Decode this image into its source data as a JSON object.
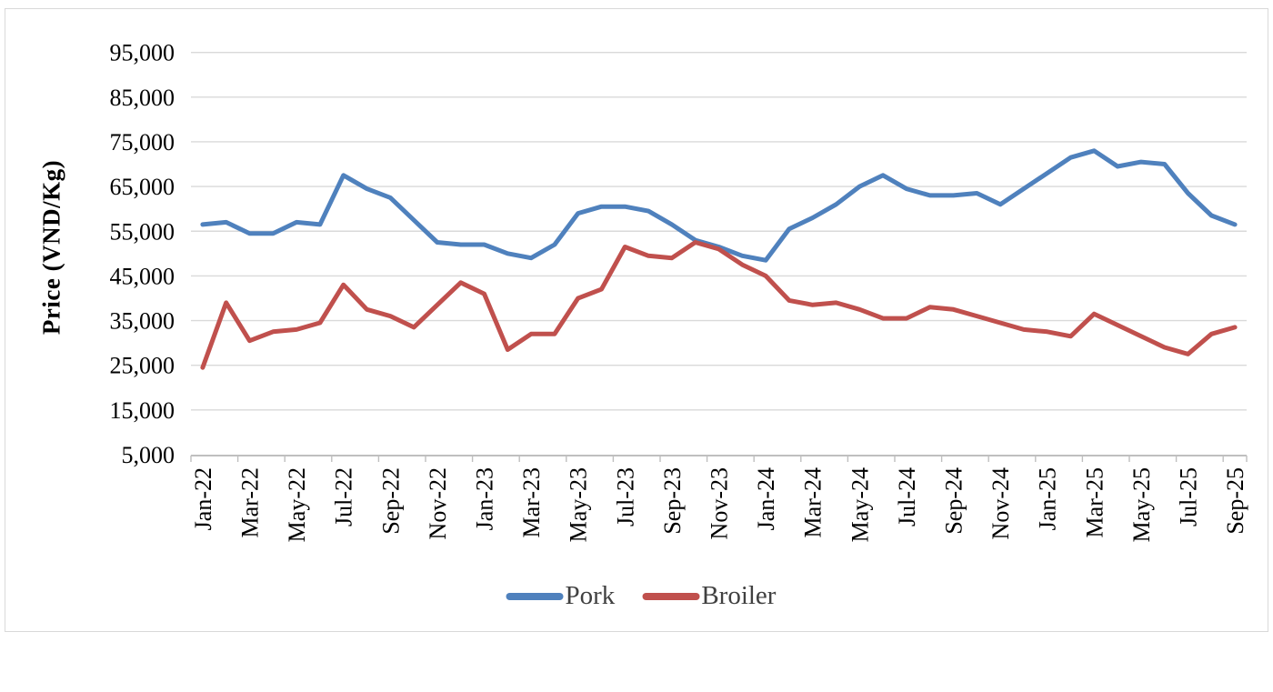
{
  "chart_data": {
    "type": "line",
    "title": "",
    "xlabel": "",
    "ylabel": "Price (VND/Kg)",
    "ylim": [
      5000,
      95000
    ],
    "ytick_step": 10000,
    "ytick_labels_top_to_bottom": [
      "95,000",
      "85,000",
      "75,000",
      "65,000",
      "55,000",
      "45,000",
      "35,000",
      "25,000",
      "15,000",
      "5,000"
    ],
    "grid": "horizontal",
    "legend_position": "bottom",
    "x_label_interval": 2,
    "visible_x_labels": [
      "Jan-22",
      "Mar-22",
      "May-22",
      "Jul-22",
      "Sep-22",
      "Nov-22",
      "Jan-23",
      "Mar-23",
      "May-23",
      "Jul-23",
      "Sep-23",
      "Nov-23",
      "Jan-24",
      "Mar-24",
      "May-24",
      "Jul-24",
      "Sep-24",
      "Nov-24",
      "Jan-25",
      "Mar-25",
      "May-25",
      "Jul-25",
      "Sep-25"
    ],
    "months": [
      "Jan-22",
      "Feb-22",
      "Mar-22",
      "Apr-22",
      "May-22",
      "Jun-22",
      "Jul-22",
      "Aug-22",
      "Sep-22",
      "Oct-22",
      "Nov-22",
      "Dec-22",
      "Jan-23",
      "Feb-23",
      "Mar-23",
      "Apr-23",
      "May-23",
      "Jun-23",
      "Jul-23",
      "Aug-23",
      "Sep-23",
      "Oct-23",
      "Nov-23",
      "Dec-23",
      "Jan-24",
      "Feb-24",
      "Mar-24",
      "Apr-24",
      "May-24",
      "Jun-24",
      "Jul-24",
      "Aug-24",
      "Sep-24",
      "Oct-24",
      "Nov-24",
      "Dec-24",
      "Jan-25",
      "Feb-25",
      "Mar-25",
      "Apr-25",
      "May-25",
      "Jun-25",
      "Jul-25",
      "Aug-25",
      "Sep-25"
    ],
    "series": [
      {
        "name": "Pork",
        "color": "#4F81BD",
        "values": [
          56500,
          57000,
          54500,
          54500,
          57000,
          56500,
          67500,
          64500,
          62500,
          57500,
          52500,
          52000,
          52000,
          50000,
          49000,
          52000,
          59000,
          60500,
          60500,
          59500,
          56500,
          53000,
          51500,
          49500,
          48500,
          55500,
          58000,
          61000,
          65000,
          67500,
          64500,
          63000,
          63000,
          63500,
          61000,
          64500,
          68000,
          71500,
          73000,
          69500,
          70500,
          70000,
          63500,
          58500,
          56500
        ]
      },
      {
        "name": "Broiler",
        "color": "#C0504D",
        "values": [
          24500,
          39000,
          30500,
          32500,
          33000,
          34500,
          43000,
          37500,
          36000,
          33500,
          38500,
          43500,
          41000,
          28500,
          32000,
          32000,
          40000,
          42000,
          51500,
          49500,
          49000,
          52500,
          51000,
          47500,
          45000,
          39500,
          38500,
          39000,
          37500,
          35500,
          35500,
          38000,
          37500,
          36000,
          34500,
          33000,
          32500,
          31500,
          36500,
          34000,
          31500,
          29000,
          27500,
          32000,
          33500
        ]
      }
    ],
    "colors": {
      "gridline": "#d9d9d9",
      "axis": "#bfbfbf",
      "tick_text": "#000000",
      "legend_text": "#404040"
    }
  }
}
